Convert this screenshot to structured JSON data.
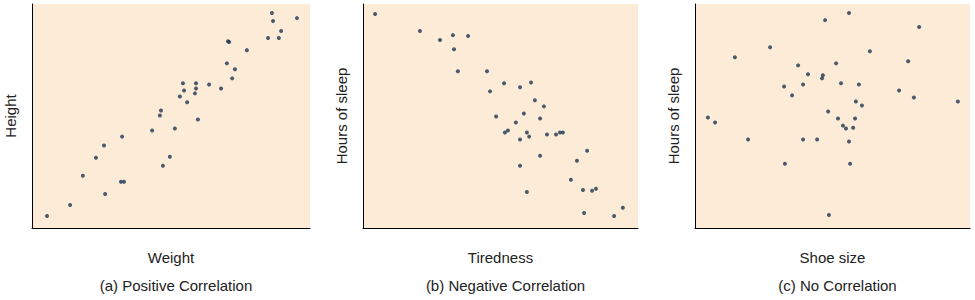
{
  "chart_data": [
    {
      "type": "scatter",
      "title": "(a) Positive Correlation",
      "xlabel": "Weight",
      "ylabel": "Height",
      "xlim": [
        0,
        100
      ],
      "ylim": [
        0,
        100
      ],
      "tick_labels": false,
      "color": "#1e3550",
      "marker": "circle",
      "x": [
        5.4,
        13.7,
        18.3,
        23.0,
        25.9,
        26.3,
        32.4,
        32.0,
        33.1,
        43.2,
        46.4,
        46.0,
        47.1,
        49.6,
        51.4,
        53.2,
        54.3,
        55.8,
        54.7,
        58.6,
        59.0,
        59.7,
        59.0,
        63.7,
        68.0,
        70.1,
        70.5,
        70.9,
        72.0,
        73.0,
        77.3,
        84.9,
        86.3,
        86.7,
        88.8,
        89.6,
        95.3
      ],
      "values": [
        5.4,
        10.3,
        23.3,
        31.4,
        36.8,
        15.2,
        40.8,
        20.6,
        20.6,
        43.5,
        52.5,
        50.2,
        27.8,
        31.8,
        44.4,
        58.7,
        64.6,
        56.1,
        61.4,
        60.1,
        64.6,
        48.4,
        62.3,
        64.1,
        62.3,
        73.5,
        83.4,
        83.0,
        66.8,
        70.9,
        79.4,
        84.8,
        96.0,
        92.4,
        84.8,
        87.9,
        93.7
      ]
    },
    {
      "type": "scatter",
      "title": "(b) Negative Correlation",
      "xlabel": "Tiredness",
      "ylabel": "Hours of sleep",
      "xlim": [
        0,
        100
      ],
      "ylim": [
        0,
        100
      ],
      "tick_labels": false,
      "color": "#1e3550",
      "marker": "circle",
      "x": [
        4.4,
        20.7,
        28.0,
        32.7,
        33.1,
        38.2,
        34.5,
        45.1,
        46.2,
        51.3,
        57.1,
        48.4,
        52.7,
        51.6,
        55.6,
        57.1,
        58.5,
        60.4,
        59.6,
        61.1,
        62.5,
        64.4,
        65.8,
        66.9,
        70.2,
        71.6,
        72.7,
        64.4,
        57.1,
        59.6,
        77.8,
        81.5,
        75.6,
        80.0,
        83.3,
        84.7,
        80.4,
        91.3,
        94.5
      ],
      "values": [
        95.5,
        87.9,
        83.9,
        86.1,
        79.8,
        85.7,
        70.0,
        70.0,
        61.0,
        64.6,
        62.8,
        49.8,
        43.5,
        42.6,
        47.1,
        39.5,
        51.1,
        40.8,
        42.6,
        65.0,
        57.0,
        48.9,
        54.3,
        41.7,
        41.7,
        42.6,
        42.6,
        32.3,
        27.8,
        16.1,
        30.0,
        34.5,
        21.5,
        17.0,
        16.6,
        17.5,
        6.7,
        5.4,
        9.0
      ]
    },
    {
      "type": "scatter",
      "title": "(c) No Correlation",
      "xlabel": "Shoe size",
      "ylabel": "Hours of sleep",
      "xlim": [
        0,
        100
      ],
      "ylim": [
        0,
        100
      ],
      "tick_labels": false,
      "color": "#1e3550",
      "marker": "circle",
      "x": [
        4.7,
        7.3,
        14.5,
        19.3,
        27.3,
        32.7,
        32.4,
        35.3,
        37.5,
        39.3,
        39.3,
        41.1,
        44.4,
        46.2,
        46.5,
        47.3,
        48.4,
        51.3,
        52.0,
        53.1,
        53.8,
        54.9,
        56.0,
        56.0,
        56.4,
        57.5,
        58.5,
        58.2,
        59.6,
        60.7,
        63.6,
        48.7,
        74.2,
        77.5,
        79.6,
        81.5,
        95.6
      ],
      "values": [
        49.3,
        47.1,
        76.2,
        39.5,
        80.7,
        28.7,
        63.2,
        59.2,
        72.6,
        64.1,
        39.5,
        68.6,
        39.5,
        66.8,
        68.2,
        92.8,
        52.0,
        73.5,
        48.9,
        64.6,
        45.7,
        44.4,
        96.0,
        38.6,
        28.7,
        44.8,
        56.5,
        48.9,
        64.1,
        54.7,
        78.9,
        5.8,
        61.4,
        74.4,
        58.3,
        89.7,
        56.5
      ]
    }
  ]
}
